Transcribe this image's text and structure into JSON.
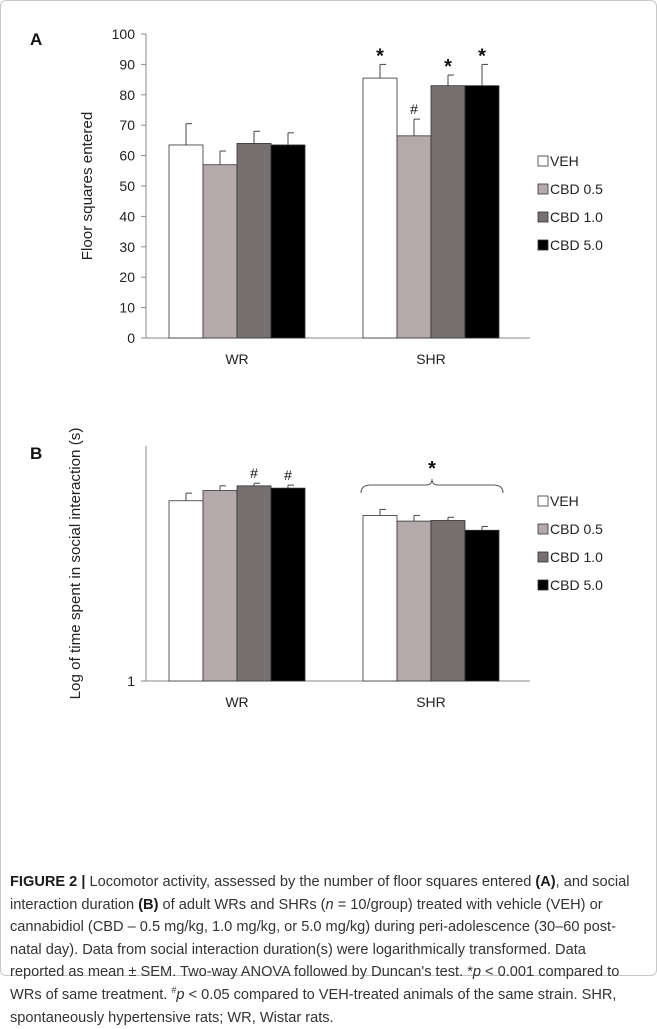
{
  "colors": {
    "VEH": "#ffffff",
    "CBD 0.5": "#b4aaab",
    "CBD 1.0": "#777071",
    "CBD 5.0": "#000000"
  },
  "chart_data": [
    {
      "panel": "A",
      "type": "bar",
      "ylabel": "Floor squares entered",
      "xlabel": "",
      "categories": [
        "WR",
        "SHR"
      ],
      "ylim": [
        0,
        100
      ],
      "yticks": [
        0,
        10,
        20,
        30,
        40,
        50,
        60,
        70,
        80,
        90,
        100
      ],
      "series": [
        {
          "name": "VEH",
          "values": [
            63.5,
            85.5
          ],
          "errors": [
            7.0,
            4.5
          ],
          "marks": [
            "",
            "*"
          ]
        },
        {
          "name": "CBD 0.5",
          "values": [
            57,
            66.5
          ],
          "errors": [
            4.5,
            5.5
          ],
          "marks": [
            "",
            "#"
          ]
        },
        {
          "name": "CBD 1.0",
          "values": [
            64,
            83
          ],
          "errors": [
            4.0,
            3.5
          ],
          "marks": [
            "",
            "*"
          ]
        },
        {
          "name": "CBD 5.0",
          "values": [
            63.5,
            83
          ],
          "errors": [
            4.0,
            7.0
          ],
          "marks": [
            "",
            "*"
          ]
        }
      ],
      "legend": [
        "□VEH",
        "■CBD 0.5",
        "■CBD 1.0",
        "■CBD 5.0"
      ],
      "legend_position": "right",
      "grid": false
    },
    {
      "panel": "B",
      "type": "bar",
      "scale": "log",
      "ylabel": "Log of time spent in social interaction (s)",
      "xlabel": "",
      "categories": [
        "WR",
        "SHR"
      ],
      "ylim": [
        1,
        1000
      ],
      "yticks": [
        1
      ],
      "series": [
        {
          "name": "VEH",
          "values": [
            200,
            130
          ],
          "errors": [
            50,
            25
          ],
          "marks": [
            "",
            ""
          ]
        },
        {
          "name": "CBD 0.5",
          "values": [
            270,
            110
          ],
          "errors": [
            40,
            20
          ],
          "marks": [
            "",
            ""
          ]
        },
        {
          "name": "CBD 1.0",
          "values": [
            310,
            112
          ],
          "errors": [
            25,
            11
          ],
          "marks": [
            "#",
            ""
          ]
        },
        {
          "name": "CBD 5.0",
          "values": [
            290,
            84
          ],
          "errors": [
            27,
            10
          ],
          "marks": [
            "#",
            ""
          ]
        }
      ],
      "group_marks": [
        "",
        "*"
      ],
      "legend": [
        "□VEH",
        "■CBD 0.5",
        "■CBD 1.0",
        "■CBD 5.0"
      ],
      "legend_position": "right",
      "grid": false
    }
  ],
  "caption": {
    "title": "FIGURE 2 |",
    "p1": " Locomotor activity, assessed by the number of floor squares entered ",
    "a": "(A)",
    "p2": ", and social interaction duration ",
    "b": "(B)",
    "p3": " of adult WRs and SHRs (",
    "n": "n",
    "p4": " = 10/group) treated with vehicle (VEH) or cannabidiol (CBD – 0.5 mg/kg, 1.0 mg/kg, or 5.0 mg/kg) during peri-adolescence (30–60 post-natal day). Data from social interaction duration(s) were logarithmically transformed. Data reported as mean ± SEM. Two-way ANOVA followed by Duncan's test. *",
    "p_a": "p",
    "p5": " < 0.001 compared to WRs of same treatment. ",
    "hash": "#",
    "p_b": "p",
    "p6": " < 0.05 compared to VEH-treated animals of the same strain. SHR, spontaneously hypertensive rats; WR, Wistar rats."
  }
}
